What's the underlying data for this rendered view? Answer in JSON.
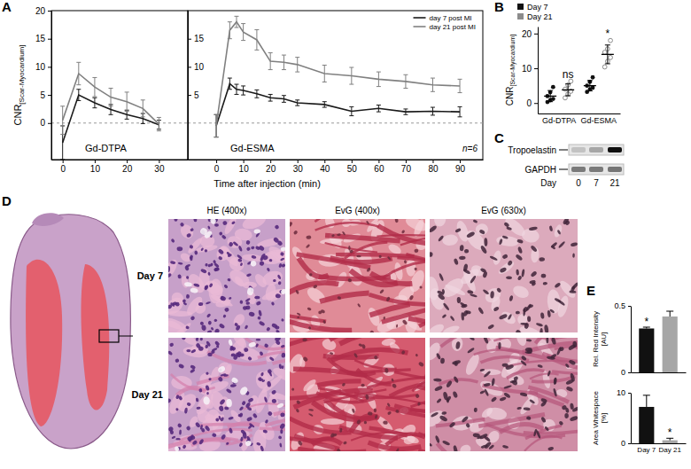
{
  "chart_data": [
    {
      "panel": "A",
      "type": "line",
      "title": "Gd-DTPA",
      "y_label": "CNR [Scar-Myocardium]",
      "x_label": "Time after injection (min)",
      "x": [
        0,
        5,
        10,
        15,
        20,
        25,
        30
      ],
      "xlim": [
        -3.5,
        39
      ],
      "xticks": [
        0,
        10,
        20,
        30
      ],
      "ylim": [
        -6.5,
        20
      ],
      "yticks": [
        0,
        5,
        10,
        15,
        20
      ],
      "baseline": 0,
      "series": [
        {
          "color": "#1a1a1a",
          "values": [
            -3.5,
            5.0,
            3.6,
            2.4,
            1.5,
            0.8,
            -0.3
          ],
          "errors": [
            3.0,
            1.0,
            0.9,
            0.9,
            0.8,
            0.9,
            0.8
          ]
        },
        {
          "color": "#808080",
          "values": [
            0.5,
            8.8,
            6.4,
            4.6,
            3.8,
            2.6,
            -0.2
          ],
          "errors": [
            2.5,
            2.0,
            1.7,
            1.6,
            1.7,
            1.5,
            1.2
          ]
        }
      ]
    },
    {
      "type": "line",
      "title": "Gd-ESMA",
      "annotation": "n=6",
      "legend": "upper right",
      "x": [
        0,
        5,
        7.5,
        10,
        15,
        20,
        25,
        30,
        40,
        50,
        60,
        70,
        80,
        90
      ],
      "xlim": [
        -10.5,
        98.5
      ],
      "xticks": [
        0,
        10,
        20,
        30,
        40,
        50,
        60,
        70,
        80,
        90
      ],
      "ylim": [
        -6.5,
        20
      ],
      "yticks": [
        5,
        10,
        15
      ],
      "baseline": 0,
      "series": [
        {
          "name": "day 7 post MI",
          "color": "#1a1a1a",
          "values": [
            -0.5,
            7.0,
            6.0,
            5.8,
            5.2,
            4.5,
            4.3,
            3.6,
            3.3,
            2.1,
            2.6,
            2.0,
            2.1,
            2.0
          ],
          "errors": [
            2.0,
            1.0,
            0.9,
            0.8,
            0.7,
            0.6,
            0.6,
            0.5,
            0.5,
            0.8,
            0.6,
            0.5,
            0.7,
            0.9
          ]
        },
        {
          "name": "day 21 post MI",
          "color": "#808080",
          "values": [
            -0.5,
            16.5,
            18.0,
            16.2,
            14.8,
            11.0,
            10.8,
            10.4,
            8.8,
            8.4,
            7.8,
            7.4,
            6.8,
            6.6
          ],
          "errors": [
            2.0,
            1.5,
            1.0,
            1.5,
            1.8,
            1.5,
            1.3,
            1.3,
            1.5,
            1.5,
            1.3,
            1.2,
            1.2,
            1.2
          ]
        }
      ]
    },
    {
      "panel": "B",
      "type": "strip",
      "y_label": "CNR [Scar-Myocardium]",
      "legend": "top",
      "categories": [
        "Gd-DTPA",
        "Gd-ESMA"
      ],
      "ylim": [
        -3,
        22
      ],
      "yticks": [
        0,
        10,
        20
      ],
      "series": [
        {
          "name": "Day 7",
          "color": "#111111",
          "marker": "filled-circle",
          "values": [
            [
              0.3,
              0.8,
              1.2,
              2.0,
              3.1,
              4.6
            ],
            [
              3.2,
              3.9,
              4.4,
              5.0,
              6.1,
              7.4
            ]
          ],
          "mean": [
            2.0,
            5.0
          ],
          "sd": [
            1.6,
            1.5
          ]
        },
        {
          "name": "Day 21",
          "color": "#8c8c8c",
          "marker": "open-circle",
          "values": [
            [
              1.5,
              2.6,
              3.4,
              4.0,
              5.2,
              6.3
            ],
            [
              10.4,
              12.0,
              13.1,
              14.6,
              15.6,
              18.0
            ]
          ],
          "mean": [
            3.8,
            14.0
          ],
          "sd": [
            1.7,
            2.7
          ]
        }
      ],
      "annotations": [
        {
          "text": "ns",
          "category": "Gd-DTPA"
        },
        {
          "text": "*",
          "category": "Gd-ESMA"
        }
      ]
    },
    {
      "panel": "E",
      "type": "bar",
      "y_label": "Rel. Red Intensity [AU]",
      "categories": [
        "Day 7",
        "Day 21"
      ],
      "values": [
        0.33,
        0.42
      ],
      "errors": [
        0.01,
        0.04
      ],
      "colors": [
        "#111111",
        "#a6a6a6"
      ],
      "ylim": [
        0,
        0.5
      ],
      "yticks": [
        0,
        0.5
      ],
      "tick_labels": "y",
      "annotations": [
        {
          "text": "*",
          "category": "Day 7"
        }
      ]
    },
    {
      "type": "bar",
      "y_label": "Area Whitespace [%]",
      "categories": [
        "Day 7",
        "Day 21"
      ],
      "values": [
        7.2,
        0.6
      ],
      "errors": [
        2.3,
        0.4
      ],
      "colors": [
        "#111111",
        "#a6a6a6"
      ],
      "ylim": [
        0,
        10
      ],
      "yticks": [
        0,
        10
      ],
      "annotations": [
        {
          "text": "*",
          "category": "Day 21"
        }
      ]
    }
  ],
  "blot": {
    "panel": "C",
    "rows": [
      {
        "label": "Tropoelastin",
        "intensity": [
          0.35,
          0.45,
          0.95
        ]
      },
      {
        "label": "GAPDH",
        "intensity": [
          0.6,
          0.6,
          0.62
        ]
      }
    ],
    "x_label": "Day",
    "lanes": [
      "0",
      "7",
      "21"
    ]
  },
  "histology": {
    "panel": "D",
    "columns": [
      "HE (400x)",
      "EvG (400x)",
      "EvG (630x)"
    ],
    "rows": [
      "Day 7",
      "Day 21"
    ]
  }
}
